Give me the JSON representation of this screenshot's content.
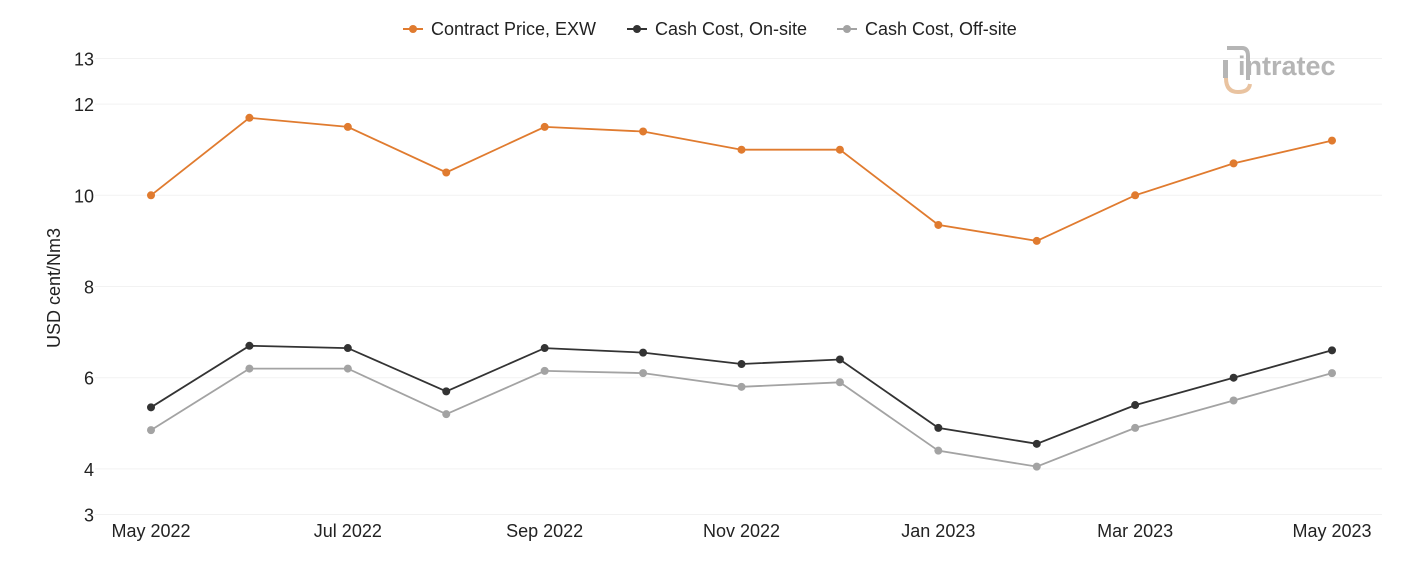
{
  "watermark": {
    "text": "intratec",
    "icon": "intratec-logo-icon",
    "color": "#b5b5b5",
    "accent_color": "#e9c3a0"
  },
  "chart_data": {
    "type": "line",
    "x": [
      "May 2022",
      "Jun 2022",
      "Jul 2022",
      "Aug 2022",
      "Sep 2022",
      "Oct 2022",
      "Nov 2022",
      "Dec 2022",
      "Jan 2023",
      "Feb 2023",
      "Mar 2023",
      "Apr 2023",
      "May 2023"
    ],
    "x_tick_labels": [
      "May 2022",
      "Jul 2022",
      "Sep 2022",
      "Nov 2022",
      "Jan 2023",
      "Mar 2023",
      "May 2023"
    ],
    "ylabel": "USD cent/Nm3",
    "ylim": [
      3,
      13
    ],
    "y_ticks": [
      3,
      4,
      6,
      8,
      10,
      12,
      13
    ],
    "grid": true,
    "legend_position": "top-center",
    "series": [
      {
        "name": "Contract Price, EXW",
        "color": "#e07b2f",
        "values": [
          10.0,
          11.7,
          11.5,
          10.5,
          11.5,
          11.4,
          11.0,
          11.0,
          9.35,
          9.0,
          10.0,
          10.7,
          11.2
        ]
      },
      {
        "name": "Cash Cost, On-site",
        "color": "#333333",
        "values": [
          5.35,
          6.7,
          6.65,
          5.7,
          6.65,
          6.55,
          6.3,
          6.4,
          4.9,
          4.55,
          5.4,
          6.0,
          6.6
        ]
      },
      {
        "name": "Cash Cost, Off-site",
        "color": "#a3a3a3",
        "values": [
          4.85,
          6.2,
          6.2,
          5.2,
          6.15,
          6.1,
          5.8,
          5.9,
          4.4,
          4.05,
          4.9,
          5.5,
          6.1
        ]
      }
    ]
  }
}
